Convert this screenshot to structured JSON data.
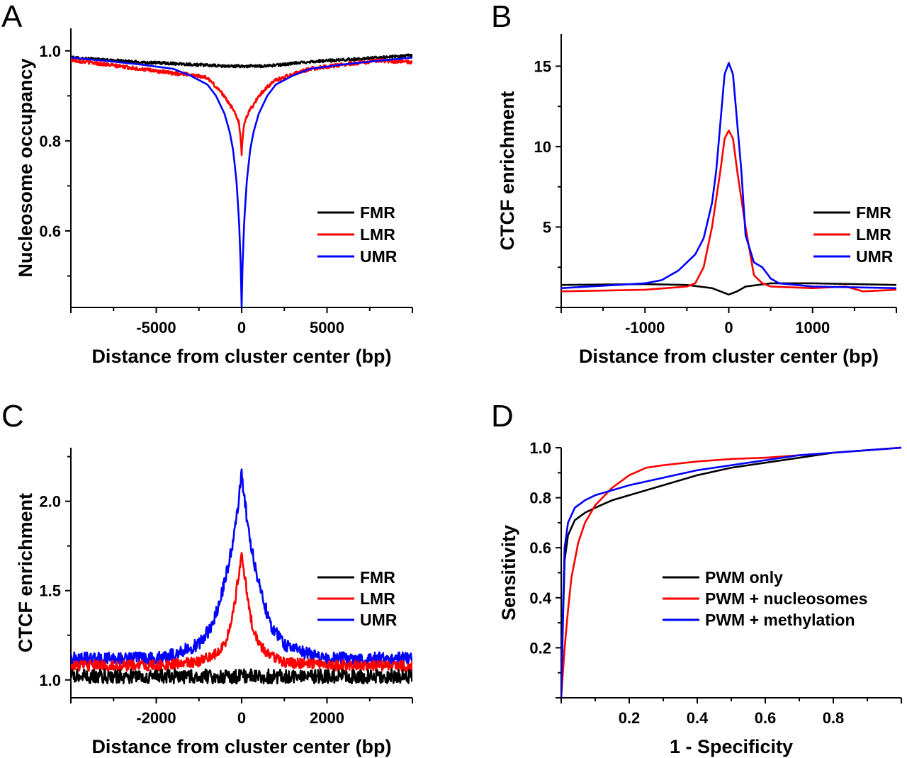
{
  "chart_data": [
    {
      "type": "line",
      "panel": "A",
      "xlabel": "Distance from cluster center (bp)",
      "ylabel": "Nucleosome occupancy",
      "xlim": [
        -10000,
        10000
      ],
      "ylim": [
        0.43,
        1.05
      ],
      "xticks": [
        -5000,
        0,
        5000
      ],
      "xtick_labels": [
        "-5000",
        "0",
        "5000"
      ],
      "yticks": [
        0.6,
        0.8,
        1.0
      ],
      "ytick_labels": [
        "0.6",
        "0.8",
        "1.0"
      ],
      "legend": "lower-right",
      "grid": false,
      "x": [
        -10000,
        -8000,
        -6000,
        -4000,
        -3000,
        -2000,
        -1500,
        -1000,
        -700,
        -500,
        -300,
        -150,
        -50,
        0,
        50,
        150,
        300,
        500,
        700,
        1000,
        1500,
        2000,
        3000,
        4000,
        6000,
        8000,
        10000
      ],
      "series": [
        {
          "name": "FMR",
          "color": "#000000",
          "noise": 0.003,
          "values": [
            0.985,
            0.98,
            0.975,
            0.972,
            0.97,
            0.968,
            0.967,
            0.966,
            0.966,
            0.966,
            0.966,
            0.966,
            0.966,
            0.966,
            0.966,
            0.966,
            0.966,
            0.966,
            0.966,
            0.966,
            0.967,
            0.968,
            0.972,
            0.976,
            0.98,
            0.985,
            0.99
          ]
        },
        {
          "name": "LMR",
          "color": "#ff0000",
          "noise": 0.004,
          "values": [
            0.98,
            0.97,
            0.96,
            0.95,
            0.948,
            0.94,
            0.92,
            0.9,
            0.88,
            0.87,
            0.855,
            0.84,
            0.8,
            0.77,
            0.8,
            0.84,
            0.855,
            0.87,
            0.88,
            0.9,
            0.92,
            0.935,
            0.948,
            0.96,
            0.97,
            0.978,
            0.975
          ]
        },
        {
          "name": "UMR",
          "color": "#0000ff",
          "noise": 0.0,
          "values": [
            0.985,
            0.978,
            0.97,
            0.96,
            0.945,
            0.925,
            0.9,
            0.86,
            0.82,
            0.78,
            0.71,
            0.62,
            0.52,
            0.43,
            0.52,
            0.62,
            0.71,
            0.78,
            0.82,
            0.86,
            0.9,
            0.925,
            0.945,
            0.96,
            0.97,
            0.978,
            0.985
          ]
        }
      ]
    },
    {
      "type": "line",
      "panel": "B",
      "xlabel": "Distance from cluster center (bp)",
      "ylabel": "CTCF enrichment",
      "xlim": [
        -2000,
        2000
      ],
      "ylim": [
        0,
        17
      ],
      "xticks": [
        -1000,
        0,
        1000
      ],
      "xtick_labels": [
        "-1000",
        "0",
        "1000"
      ],
      "yticks": [
        5,
        10,
        15
      ],
      "ytick_labels": [
        "5",
        "10",
        "15"
      ],
      "legend": "right",
      "grid": false,
      "series": [
        {
          "name": "FMR",
          "color": "#000000",
          "x": [
            -2000,
            -1000,
            -500,
            -200,
            -100,
            0,
            100,
            200,
            500,
            1000,
            2000
          ],
          "values": [
            1.4,
            1.45,
            1.4,
            1.2,
            1.0,
            0.8,
            1.0,
            1.3,
            1.5,
            1.5,
            1.4
          ]
        },
        {
          "name": "LMR",
          "color": "#ff0000",
          "x": [
            -2000,
            -1000,
            -500,
            -400,
            -300,
            -200,
            -100,
            -50,
            0,
            50,
            100,
            200,
            300,
            400,
            500,
            1000,
            1400,
            1600,
            2000
          ],
          "values": [
            1.0,
            1.1,
            1.3,
            1.5,
            2.5,
            5.0,
            8.5,
            10.5,
            11.0,
            10.5,
            8.5,
            5.0,
            2.0,
            1.5,
            1.3,
            1.2,
            1.3,
            1.0,
            1.1
          ]
        },
        {
          "name": "UMR",
          "color": "#0000ff",
          "x": [
            -2000,
            -1000,
            -800,
            -600,
            -400,
            -300,
            -200,
            -150,
            -100,
            -50,
            0,
            50,
            100,
            150,
            200,
            300,
            400,
            500,
            600,
            1000,
            2000
          ],
          "values": [
            1.2,
            1.5,
            1.7,
            2.3,
            3.3,
            4.3,
            6.5,
            8.5,
            11.5,
            14.5,
            15.2,
            14.5,
            11.5,
            8.5,
            4.5,
            2.8,
            2.5,
            1.8,
            1.5,
            1.3,
            1.2
          ]
        }
      ]
    },
    {
      "type": "line",
      "panel": "C",
      "xlabel": "Distance from cluster center (bp)",
      "ylabel": "CTCF enrichment",
      "xlim": [
        -4000,
        4000
      ],
      "ylim": [
        0.9,
        2.3
      ],
      "xticks": [
        -2000,
        0,
        2000
      ],
      "xtick_labels": [
        "-2000",
        "0",
        "2000"
      ],
      "yticks": [
        1.0,
        1.5,
        2.0
      ],
      "ytick_labels": [
        "1.0",
        "1.5",
        "2.0"
      ],
      "legend": "right",
      "grid": false,
      "series": [
        {
          "name": "UMR",
          "color": "#0000ff",
          "noise": 0.035,
          "x": [
            -4000,
            -2000,
            -1500,
            -1000,
            -700,
            -500,
            -300,
            -150,
            -50,
            0,
            50,
            150,
            300,
            500,
            700,
            1000,
            1500,
            2000,
            4000
          ],
          "values": [
            1.12,
            1.12,
            1.15,
            1.2,
            1.3,
            1.45,
            1.65,
            1.85,
            2.05,
            2.15,
            2.05,
            1.85,
            1.65,
            1.45,
            1.3,
            1.2,
            1.15,
            1.12,
            1.12
          ]
        },
        {
          "name": "LMR",
          "color": "#ff0000",
          "noise": 0.03,
          "x": [
            -4000,
            -2000,
            -1000,
            -600,
            -400,
            -250,
            -150,
            -50,
            0,
            50,
            150,
            250,
            400,
            600,
            1000,
            2000,
            4000
          ],
          "values": [
            1.08,
            1.08,
            1.1,
            1.15,
            1.2,
            1.3,
            1.45,
            1.62,
            1.72,
            1.62,
            1.45,
            1.3,
            1.2,
            1.15,
            1.1,
            1.08,
            1.08
          ]
        },
        {
          "name": "FMR",
          "color": "#000000",
          "noise": 0.04,
          "x": [
            -4000,
            0,
            4000
          ],
          "values": [
            1.02,
            1.02,
            1.02
          ]
        }
      ]
    },
    {
      "type": "line",
      "panel": "D",
      "xlabel": "1 - Specificity",
      "ylabel": "Sensitivity",
      "xlim": [
        0,
        1
      ],
      "ylim": [
        0,
        1
      ],
      "xticks": [
        0.2,
        0.4,
        0.6,
        0.8
      ],
      "xtick_labels": [
        "0.2",
        "0.4",
        "0.6",
        "0.8"
      ],
      "yticks": [
        0.2,
        0.4,
        0.6,
        0.8,
        1.0
      ],
      "ytick_labels": [
        "0.2",
        "0.4",
        "0.6",
        "0.8",
        "1.0"
      ],
      "legend": "lower-right",
      "grid": false,
      "series": [
        {
          "name": "PWM only",
          "color": "#000000",
          "x": [
            0,
            0.005,
            0.01,
            0.02,
            0.04,
            0.07,
            0.1,
            0.15,
            0.2,
            0.3,
            0.4,
            0.5,
            0.6,
            0.7,
            0.8,
            0.9,
            1.0
          ],
          "values": [
            0,
            0.3,
            0.55,
            0.65,
            0.71,
            0.74,
            0.76,
            0.79,
            0.81,
            0.85,
            0.89,
            0.92,
            0.94,
            0.96,
            0.98,
            0.99,
            1.0
          ]
        },
        {
          "name": "PWM + nucleosomes",
          "color": "#ff0000",
          "x": [
            0,
            0.005,
            0.01,
            0.02,
            0.03,
            0.05,
            0.07,
            0.1,
            0.15,
            0.2,
            0.25,
            0.3,
            0.4,
            0.5,
            0.6,
            0.7,
            0.8,
            0.9,
            1.0
          ],
          "values": [
            0,
            0.1,
            0.2,
            0.35,
            0.48,
            0.62,
            0.7,
            0.77,
            0.84,
            0.89,
            0.92,
            0.93,
            0.945,
            0.955,
            0.96,
            0.97,
            0.98,
            0.99,
            1.0
          ]
        },
        {
          "name": "PWM + methylation",
          "color": "#0000ff",
          "x": [
            0,
            0.005,
            0.01,
            0.02,
            0.04,
            0.07,
            0.1,
            0.15,
            0.2,
            0.3,
            0.4,
            0.5,
            0.6,
            0.7,
            0.8,
            0.9,
            1.0
          ],
          "values": [
            0,
            0.35,
            0.6,
            0.7,
            0.76,
            0.79,
            0.81,
            0.83,
            0.85,
            0.88,
            0.91,
            0.93,
            0.95,
            0.97,
            0.98,
            0.99,
            1.0
          ]
        }
      ]
    }
  ]
}
